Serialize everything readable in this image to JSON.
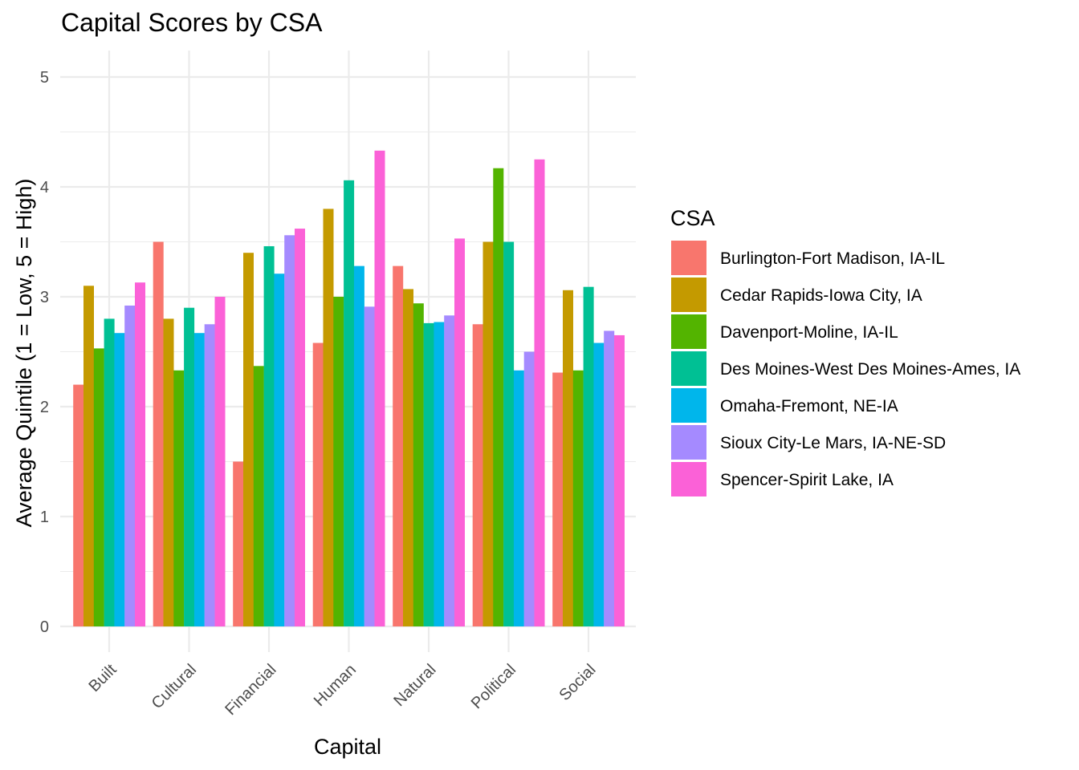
{
  "chart_data": {
    "type": "bar",
    "title": "Capital Scores by CSA",
    "xlabel": "Capital",
    "ylabel": "Average Quintile (1 = Low, 5 = High)",
    "ylim": [
      0,
      5
    ],
    "yticks": [
      "0",
      "1",
      "2",
      "3",
      "4",
      "5"
    ],
    "grid": true,
    "legend_title": "CSA",
    "legend_position": "right",
    "categories": [
      "Built",
      "Cultural",
      "Financial",
      "Human",
      "Natural",
      "Political",
      "Social"
    ],
    "series": [
      {
        "name": "Burlington-Fort Madison, IA-IL",
        "color": "#F8766D",
        "values": [
          2.2,
          3.5,
          1.5,
          2.58,
          3.28,
          2.75,
          2.31
        ]
      },
      {
        "name": "Cedar Rapids-Iowa City, IA",
        "color": "#C49A00",
        "values": [
          3.1,
          2.8,
          3.4,
          3.8,
          3.07,
          3.5,
          3.06
        ]
      },
      {
        "name": "Davenport-Moline, IA-IL",
        "color": "#53B400",
        "values": [
          2.53,
          2.33,
          2.37,
          3.0,
          2.94,
          4.17,
          2.33
        ]
      },
      {
        "name": "Des Moines-West Des Moines-Ames, IA",
        "color": "#00C094",
        "values": [
          2.8,
          2.9,
          3.46,
          4.06,
          2.76,
          3.5,
          3.09
        ]
      },
      {
        "name": "Omaha-Fremont, NE-IA",
        "color": "#00B6EB",
        "values": [
          2.67,
          2.67,
          3.21,
          3.28,
          2.77,
          2.33,
          2.58
        ]
      },
      {
        "name": "Sioux City-Le Mars, IA-NE-SD",
        "color": "#A58AFF",
        "values": [
          2.92,
          2.75,
          3.56,
          2.91,
          2.83,
          2.5,
          2.69
        ]
      },
      {
        "name": "Spencer-Spirit Lake, IA",
        "color": "#FB61D7",
        "values": [
          3.13,
          3.0,
          3.62,
          4.33,
          3.53,
          4.25,
          2.65
        ]
      }
    ]
  }
}
